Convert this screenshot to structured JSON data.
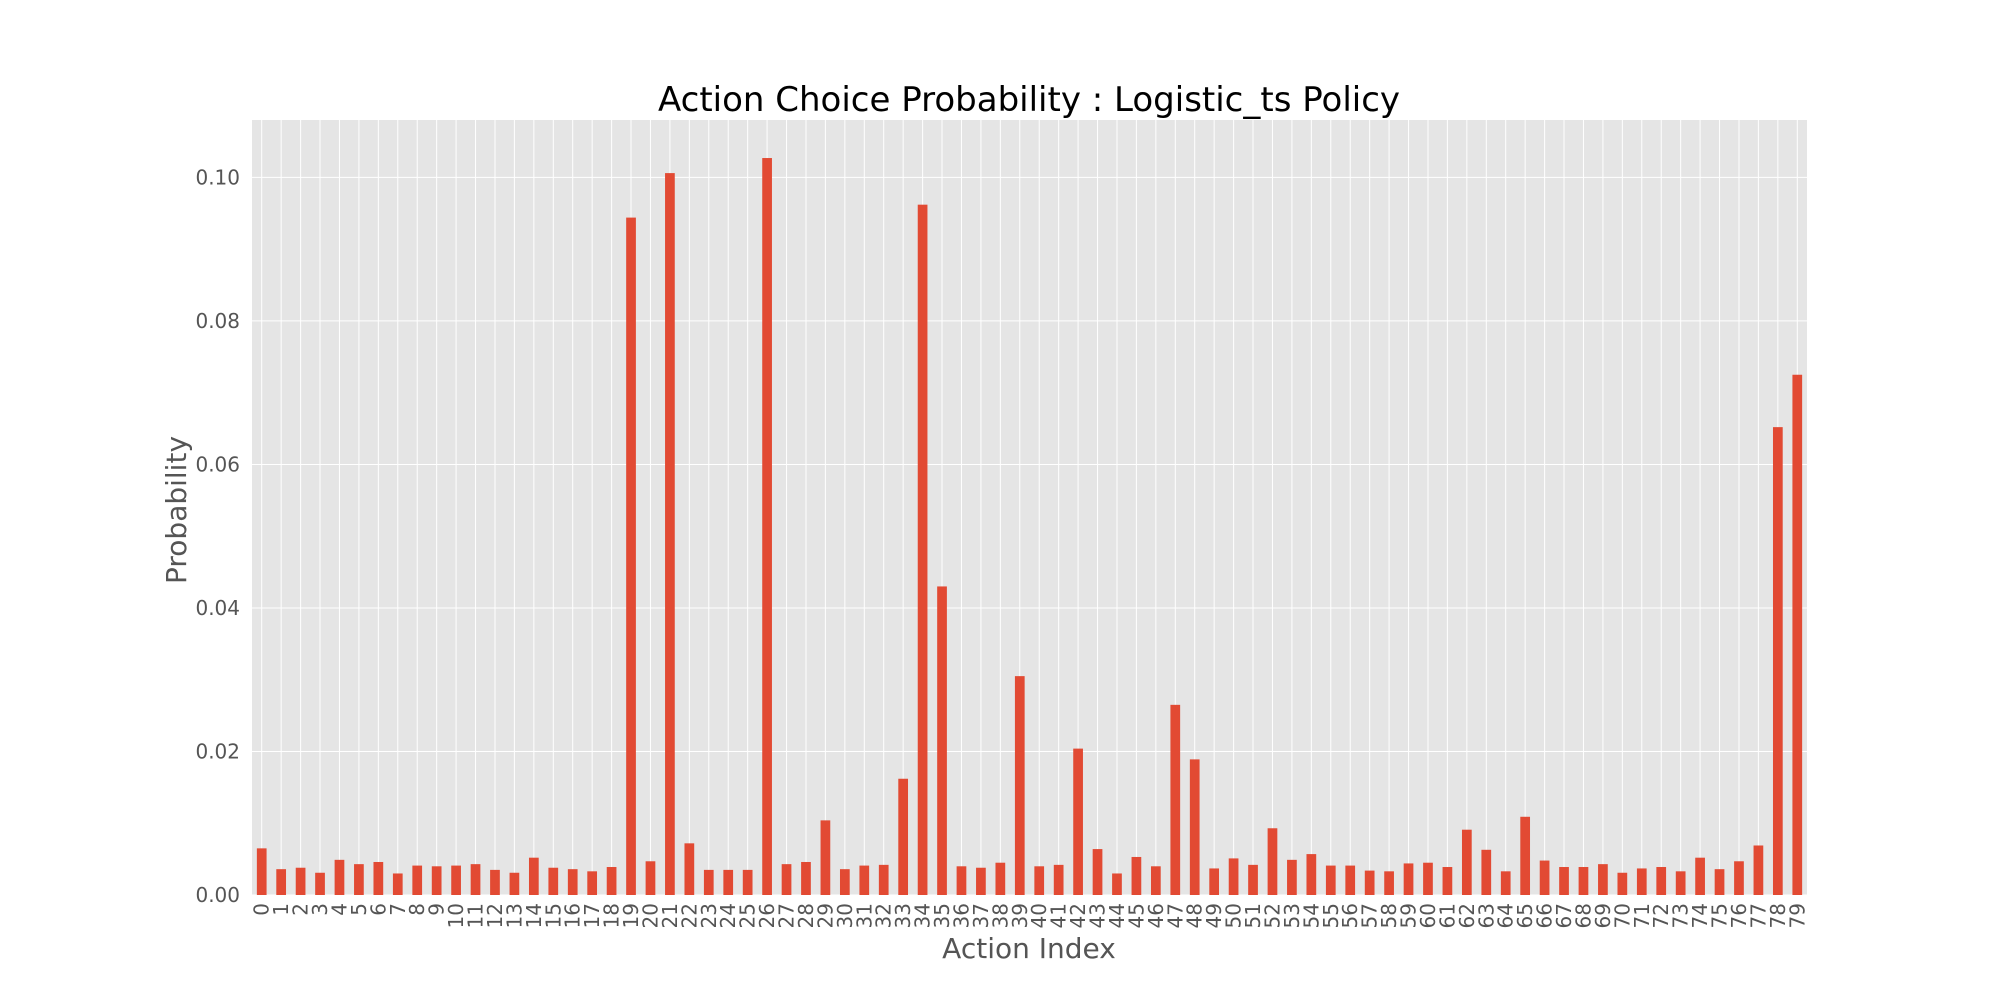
{
  "chart_data": {
    "type": "bar",
    "title": "Action Choice Probability : Logistic_ts Policy",
    "xlabel": "Action Index",
    "ylabel": "Probability",
    "ylim": [
      0,
      0.108
    ],
    "yticks": [
      "0.00",
      "0.02",
      "0.04",
      "0.06",
      "0.08",
      "0.10"
    ],
    "grid": true,
    "colors": {
      "bar": "#E24A33",
      "plot_bg": "#E5E5E5",
      "grid": "#FFFFFF"
    },
    "categories": [
      "0",
      "1",
      "2",
      "3",
      "4",
      "5",
      "6",
      "7",
      "8",
      "9",
      "10",
      "11",
      "12",
      "13",
      "14",
      "15",
      "16",
      "17",
      "18",
      "19",
      "20",
      "21",
      "22",
      "23",
      "24",
      "25",
      "26",
      "27",
      "28",
      "29",
      "30",
      "31",
      "32",
      "33",
      "34",
      "35",
      "36",
      "37",
      "38",
      "39",
      "40",
      "41",
      "42",
      "43",
      "44",
      "45",
      "46",
      "47",
      "48",
      "49",
      "50",
      "51",
      "52",
      "53",
      "54",
      "55",
      "56",
      "57",
      "58",
      "59",
      "60",
      "61",
      "62",
      "63",
      "64",
      "65",
      "66",
      "67",
      "68",
      "69",
      "70",
      "71",
      "72",
      "73",
      "74",
      "75",
      "76",
      "77",
      "78",
      "79"
    ],
    "values": [
      0.0065,
      0.0036,
      0.0038,
      0.0031,
      0.0049,
      0.0043,
      0.0046,
      0.003,
      0.0041,
      0.004,
      0.0041,
      0.0043,
      0.0035,
      0.0031,
      0.0052,
      0.0038,
      0.0036,
      0.0033,
      0.0039,
      0.0944,
      0.0047,
      0.1006,
      0.0072,
      0.0035,
      0.0035,
      0.0035,
      0.1027,
      0.0043,
      0.0046,
      0.0104,
      0.0036,
      0.0041,
      0.0042,
      0.0162,
      0.0962,
      0.043,
      0.004,
      0.0038,
      0.0045,
      0.0305,
      0.004,
      0.0042,
      0.0204,
      0.0064,
      0.003,
      0.0053,
      0.004,
      0.0265,
      0.0189,
      0.0037,
      0.0051,
      0.0042,
      0.0093,
      0.0049,
      0.0057,
      0.0041,
      0.0041,
      0.0034,
      0.0033,
      0.0044,
      0.0045,
      0.0039,
      0.0091,
      0.0063,
      0.0033,
      0.0109,
      0.0048,
      0.0039,
      0.0039,
      0.0043,
      0.0031,
      0.0037,
      0.0039,
      0.0033,
      0.0052,
      0.0036,
      0.0047,
      0.0069,
      0.0652,
      0.0725
    ]
  }
}
